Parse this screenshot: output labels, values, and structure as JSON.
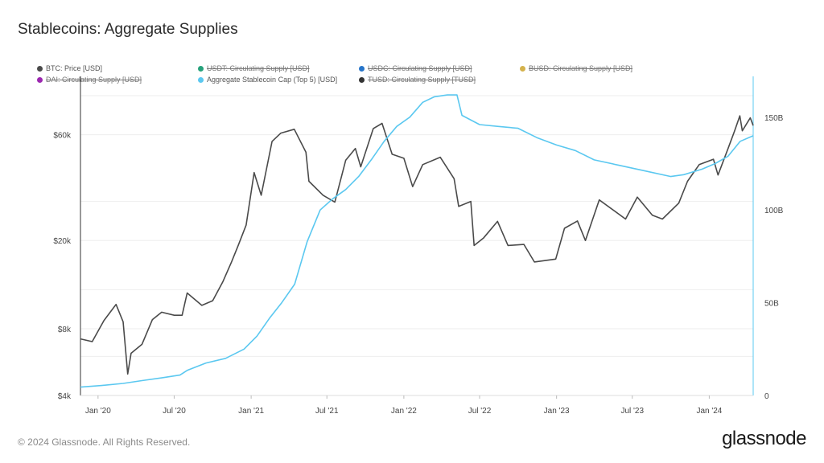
{
  "title": "Stablecoins: Aggregate Supplies",
  "footer": {
    "copyright": "© 2024 Glassnode. All Rights Reserved.",
    "brand": "glassnode"
  },
  "legend": [
    {
      "label": "BTC: Price [USD]",
      "color": "#4a4a4a",
      "active": true
    },
    {
      "label": "USDT: Circulating Supply [USD]",
      "color": "#26a17b",
      "active": false
    },
    {
      "label": "USDC: Circulating Supply [USD]",
      "color": "#2775ca",
      "active": false
    },
    {
      "label": "BUSD: Circulating Supply [USD]",
      "color": "#d4b24c",
      "active": false
    },
    {
      "label": "DAI: Circulating Supply [USD]",
      "color": "#9c27b0",
      "active": false
    },
    {
      "label": "Aggregate Stablecoin Cap (Top 5) [USD]",
      "color": "#5bc8f0",
      "active": true
    },
    {
      "label": "TUSD: Circulating Supply [TUSD]",
      "color": "#333333",
      "active": false
    }
  ],
  "chart_data": {
    "type": "line",
    "x_ticks": [
      "Jan '20",
      "Jul '20",
      "Jan '21",
      "Jul '21",
      "Jan '22",
      "Jul '22",
      "Jan '23",
      "Jul '23",
      "Jan '24"
    ],
    "y_left": {
      "scale": "log",
      "ticks": [
        "$4k",
        "$8k",
        "$20k",
        "$60k"
      ],
      "tick_values": [
        4000,
        8000,
        20000,
        60000
      ],
      "range": [
        4000,
        110000
      ]
    },
    "y_right": {
      "scale": "linear",
      "ticks": [
        "0",
        "50B",
        "100B",
        "150B"
      ],
      "tick_values": [
        0,
        50,
        100,
        150
      ],
      "range": [
        0,
        172
      ]
    },
    "x_range": [
      "2019-11-20",
      "2024-04-15"
    ],
    "series": [
      {
        "name": "BTC: Price [USD]",
        "color": "#4a4a4a",
        "axis": "left",
        "points": [
          [
            "2019-11-20",
            7200
          ],
          [
            "2019-12-18",
            7000
          ],
          [
            "2020-01-15",
            8700
          ],
          [
            "2020-02-13",
            10300
          ],
          [
            "2020-03-01",
            8600
          ],
          [
            "2020-03-12",
            5000
          ],
          [
            "2020-03-20",
            6200
          ],
          [
            "2020-04-15",
            6800
          ],
          [
            "2020-05-10",
            8800
          ],
          [
            "2020-06-01",
            9500
          ],
          [
            "2020-07-01",
            9200
          ],
          [
            "2020-07-20",
            9200
          ],
          [
            "2020-08-01",
            11600
          ],
          [
            "2020-09-05",
            10200
          ],
          [
            "2020-10-01",
            10700
          ],
          [
            "2020-10-25",
            13000
          ],
          [
            "2020-11-15",
            16000
          ],
          [
            "2020-12-01",
            19000
          ],
          [
            "2020-12-20",
            23500
          ],
          [
            "2021-01-08",
            40500
          ],
          [
            "2021-01-25",
            32000
          ],
          [
            "2021-02-20",
            56000
          ],
          [
            "2021-03-13",
            61000
          ],
          [
            "2021-04-14",
            63500
          ],
          [
            "2021-05-12",
            50000
          ],
          [
            "2021-05-19",
            37000
          ],
          [
            "2021-06-22",
            32000
          ],
          [
            "2021-07-20",
            29800
          ],
          [
            "2021-08-15",
            46000
          ],
          [
            "2021-09-07",
            52000
          ],
          [
            "2021-09-20",
            43000
          ],
          [
            "2021-10-20",
            64000
          ],
          [
            "2021-11-10",
            67500
          ],
          [
            "2021-12-04",
            49000
          ],
          [
            "2022-01-01",
            47000
          ],
          [
            "2022-01-22",
            35000
          ],
          [
            "2022-02-15",
            44000
          ],
          [
            "2022-03-29",
            47500
          ],
          [
            "2022-05-01",
            38000
          ],
          [
            "2022-05-12",
            28500
          ],
          [
            "2022-06-10",
            30000
          ],
          [
            "2022-06-18",
            19000
          ],
          [
            "2022-07-10",
            20500
          ],
          [
            "2022-08-13",
            24400
          ],
          [
            "2022-09-07",
            19000
          ],
          [
            "2022-10-15",
            19200
          ],
          [
            "2022-11-09",
            16000
          ],
          [
            "2022-12-30",
            16500
          ],
          [
            "2023-01-20",
            22700
          ],
          [
            "2023-02-20",
            24500
          ],
          [
            "2023-03-11",
            20000
          ],
          [
            "2023-04-13",
            30500
          ],
          [
            "2023-06-15",
            25000
          ],
          [
            "2023-07-13",
            31400
          ],
          [
            "2023-08-18",
            26000
          ],
          [
            "2023-09-11",
            25000
          ],
          [
            "2023-10-20",
            29500
          ],
          [
            "2023-11-10",
            37000
          ],
          [
            "2023-12-08",
            44000
          ],
          [
            "2024-01-11",
            46500
          ],
          [
            "2024-01-22",
            39500
          ],
          [
            "2024-02-15",
            52000
          ],
          [
            "2024-03-01",
            62000
          ],
          [
            "2024-03-14",
            73000
          ],
          [
            "2024-03-20",
            62500
          ],
          [
            "2024-04-08",
            71500
          ],
          [
            "2024-04-15",
            66000
          ]
        ]
      },
      {
        "name": "Aggregate Stablecoin Cap (Top 5) [USD]",
        "color": "#5bc8f0",
        "axis": "right",
        "points": [
          [
            "2019-11-20",
            4.5
          ],
          [
            "2020-01-15",
            5.5
          ],
          [
            "2020-03-01",
            6.5
          ],
          [
            "2020-04-15",
            8.0
          ],
          [
            "2020-06-01",
            9.5
          ],
          [
            "2020-07-15",
            11.0
          ],
          [
            "2020-08-01",
            13.5
          ],
          [
            "2020-09-15",
            17.5
          ],
          [
            "2020-11-01",
            20.0
          ],
          [
            "2020-12-15",
            25.0
          ],
          [
            "2021-01-15",
            32.0
          ],
          [
            "2021-02-15",
            42.0
          ],
          [
            "2021-03-15",
            50.0
          ],
          [
            "2021-04-15",
            60.0
          ],
          [
            "2021-05-15",
            83.0
          ],
          [
            "2021-06-15",
            100.0
          ],
          [
            "2021-07-15",
            106.0
          ],
          [
            "2021-08-15",
            111.0
          ],
          [
            "2021-09-15",
            118.0
          ],
          [
            "2021-10-15",
            127.0
          ],
          [
            "2021-11-15",
            137.0
          ],
          [
            "2021-12-15",
            145.0
          ],
          [
            "2022-01-15",
            150.0
          ],
          [
            "2022-02-15",
            158.0
          ],
          [
            "2022-03-15",
            161.0
          ],
          [
            "2022-04-15",
            162.0
          ],
          [
            "2022-05-08",
            162.0
          ],
          [
            "2022-05-20",
            151.0
          ],
          [
            "2022-07-01",
            146.0
          ],
          [
            "2022-08-15",
            145.0
          ],
          [
            "2022-10-01",
            144.0
          ],
          [
            "2022-11-15",
            139.0
          ],
          [
            "2023-01-01",
            135.0
          ],
          [
            "2023-02-15",
            132.0
          ],
          [
            "2023-04-01",
            127.0
          ],
          [
            "2023-06-01",
            124.0
          ],
          [
            "2023-08-01",
            121.0
          ],
          [
            "2023-10-01",
            118.0
          ],
          [
            "2023-11-01",
            119.0
          ],
          [
            "2023-12-15",
            122.0
          ],
          [
            "2024-01-15",
            125.0
          ],
          [
            "2024-02-15",
            129.0
          ],
          [
            "2024-03-15",
            137.0
          ],
          [
            "2024-04-15",
            140.0
          ]
        ]
      }
    ]
  }
}
